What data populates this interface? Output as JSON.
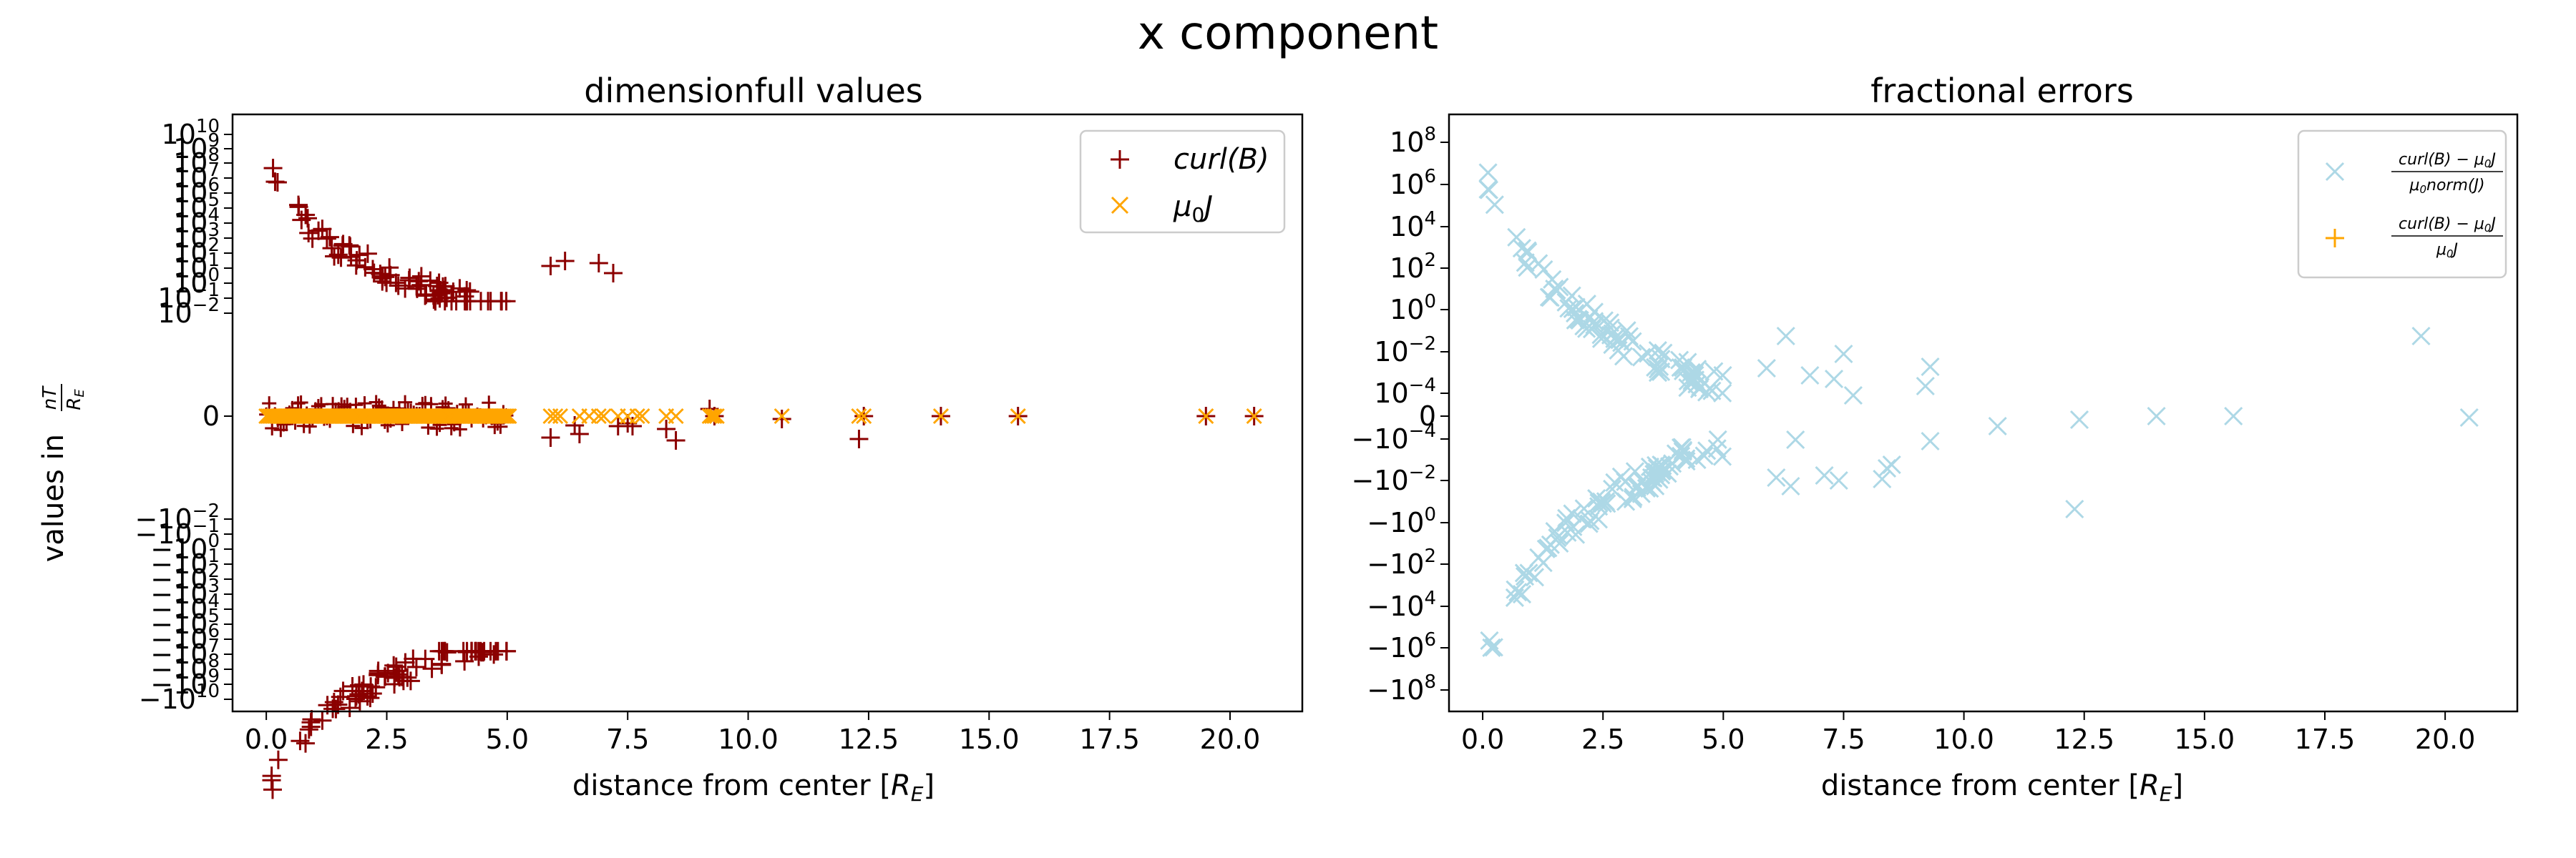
{
  "figure": {
    "suptitle": "x component"
  },
  "chart_data": [
    {
      "type": "scatter",
      "title": "dimensionfull values",
      "xlabel": "distance from center [R_E]",
      "ylabel": "values in nT/R_E",
      "xlim": [
        -0.7,
        21.5
      ],
      "yscale": "symlog",
      "xticks": [
        "0.0",
        "2.5",
        "5.0",
        "7.5",
        "10.0",
        "12.5",
        "15.0",
        "17.5",
        "20.0"
      ],
      "yticks_pos": [
        "10^10",
        "10^9",
        "10^8",
        "10^7",
        "10^6",
        "10^5",
        "10^4",
        "10^3",
        "10^2",
        "10^1",
        "10^0",
        "10^-1",
        "10^-2"
      ],
      "yticks_zero": "0",
      "yticks_neg": [
        "−10^-2",
        "−10^-1",
        "−10^0",
        "−10^1",
        "−10^2",
        "−10^3",
        "−10^4",
        "−10^5",
        "−10^6",
        "−10^7",
        "−10^8",
        "−10^9",
        "−10^10"
      ],
      "legend_loc": "upper right",
      "series": [
        {
          "name": "curl(B)",
          "marker": "+",
          "color": "#8b0000"
        },
        {
          "name": "μ0J",
          "marker": "x",
          "color": "#ffa500"
        }
      ]
    },
    {
      "type": "scatter",
      "title": "fractional errors",
      "xlabel": "distance from center [R_E]",
      "xlim": [
        -0.7,
        21.5
      ],
      "yscale": "symlog",
      "xticks": [
        "0.0",
        "2.5",
        "5.0",
        "7.5",
        "10.0",
        "12.5",
        "15.0",
        "17.5",
        "20.0"
      ],
      "yticks": [
        "10^8",
        "10^6",
        "10^4",
        "10^2",
        "10^0",
        "10^-2",
        "10^-4",
        "0",
        "−10^-4",
        "−10^-2",
        "−10^0",
        "−10^2",
        "−10^4",
        "−10^6",
        "−10^8"
      ],
      "legend_loc": "upper right",
      "series": [
        {
          "name": "(curl(B) − μ0J) / (μ0 norm(J))",
          "marker": "x",
          "color": "#add8e6"
        },
        {
          "name": "(curl(B) − μ0J) / (μ0 J)",
          "marker": "+",
          "color": "#ffa500"
        }
      ]
    }
  ]
}
